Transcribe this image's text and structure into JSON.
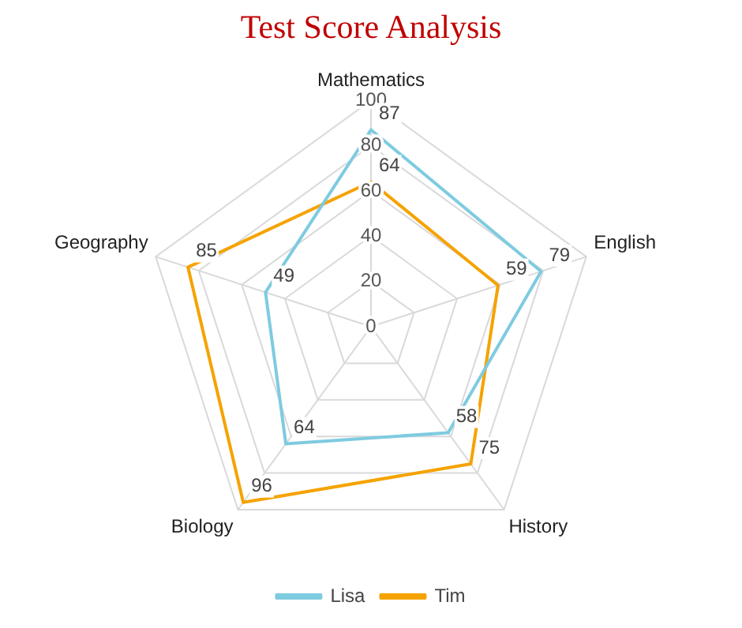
{
  "chart_data": {
    "type": "radar",
    "title": "Test Score Analysis",
    "categories": [
      "Mathematics",
      "English",
      "History",
      "Biology",
      "Geography"
    ],
    "series": [
      {
        "name": "Lisa",
        "color": "#7ecbe0",
        "values": [
          87,
          79,
          58,
          64,
          49
        ]
      },
      {
        "name": "Tim",
        "color": "#f5a300",
        "values": [
          64,
          59,
          75,
          96,
          85
        ]
      }
    ],
    "ylim": [
      0,
      100
    ],
    "yticks": [
      0,
      20,
      40,
      60,
      80,
      100
    ],
    "grid": true,
    "legend": "bottom",
    "data_labels": true,
    "marker": "none"
  }
}
